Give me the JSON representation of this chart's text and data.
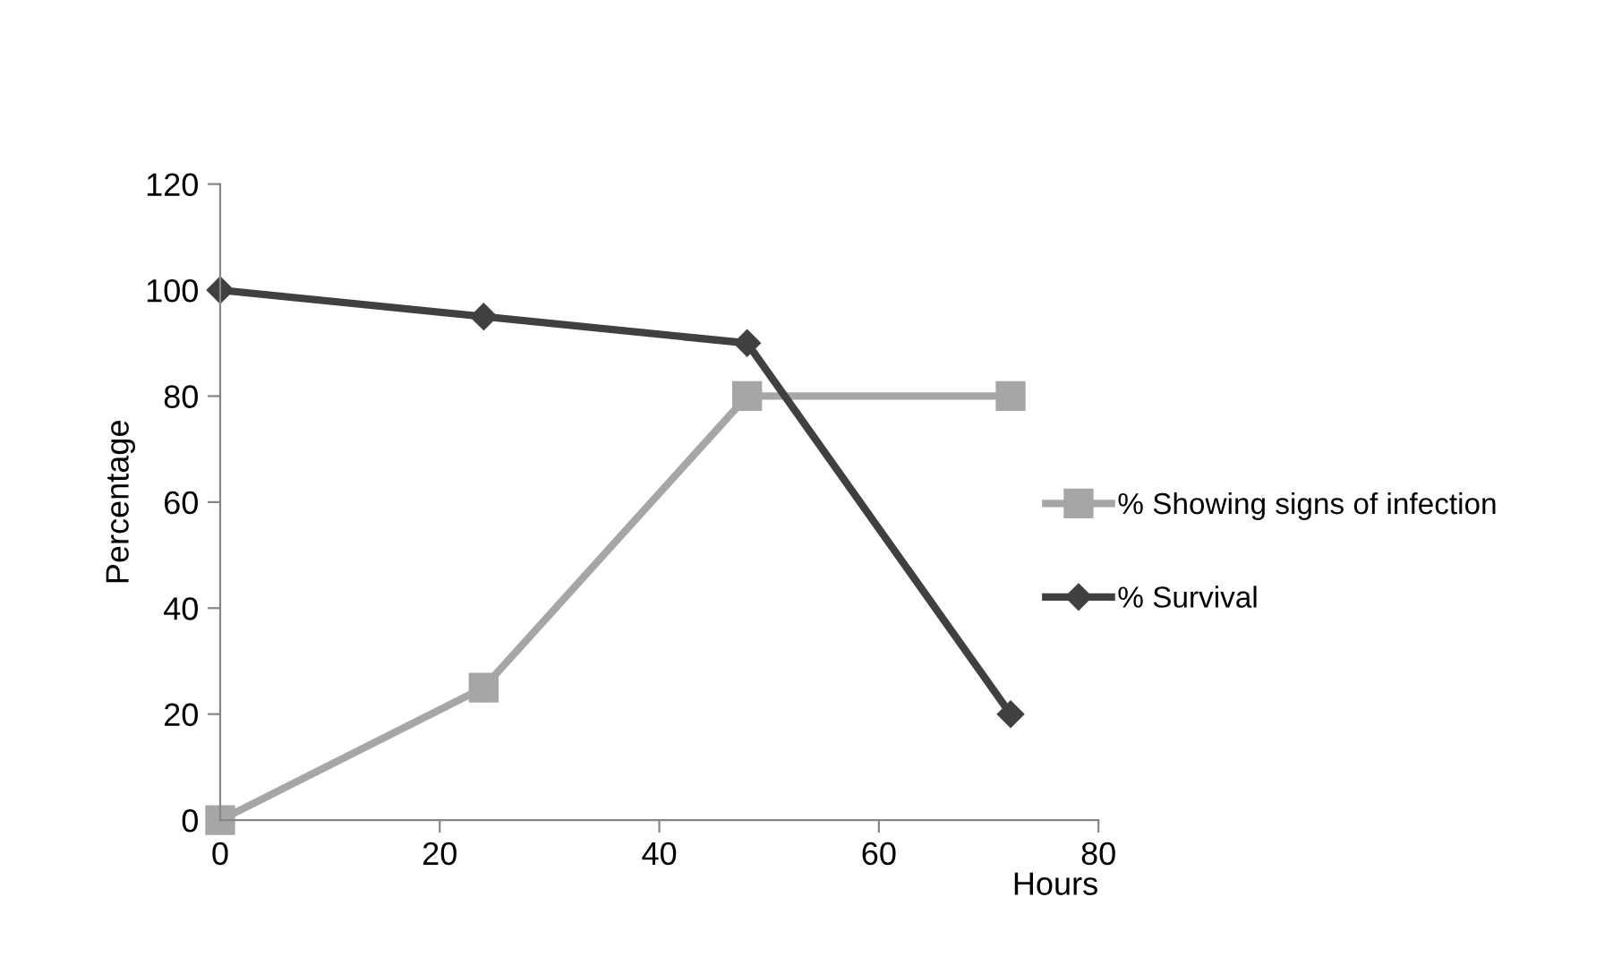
{
  "chart_data": {
    "type": "line",
    "xlabel": "Hours",
    "ylabel": "Percentage",
    "x": [
      0,
      24,
      48,
      72
    ],
    "series": [
      {
        "name": "% Showing signs of infection",
        "color": "#a6a6a6",
        "marker": "square",
        "values": [
          0,
          25,
          80,
          80
        ]
      },
      {
        "name": "% Survival",
        "color": "#404040",
        "marker": "diamond",
        "values": [
          100,
          95,
          90,
          20
        ]
      }
    ],
    "xlim": [
      0,
      80
    ],
    "xticks": [
      0,
      20,
      40,
      60,
      80
    ],
    "ylim": [
      0,
      120
    ],
    "yticks": [
      0,
      20,
      40,
      60,
      80,
      100,
      120
    ],
    "grid": false,
    "legend": "right",
    "line_style": "solid"
  }
}
